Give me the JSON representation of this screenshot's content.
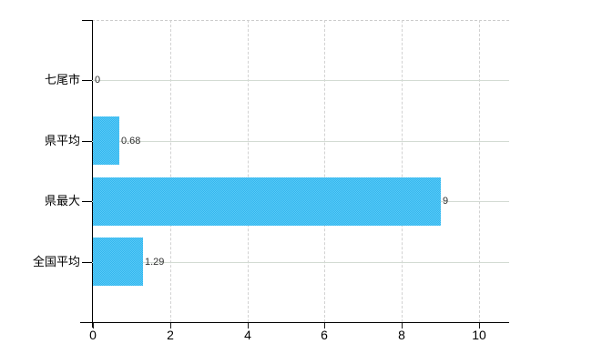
{
  "chart_data": {
    "type": "bar",
    "orientation": "horizontal",
    "title": "",
    "xlabel": "",
    "ylabel": "",
    "categories": [
      "七尾市",
      "県平均",
      "県最大",
      "全国平均"
    ],
    "values": [
      0,
      0.68,
      9,
      1.29
    ],
    "value_labels": [
      "0",
      "0.68",
      "9",
      "1.29"
    ],
    "x_ticks": [
      0,
      2,
      4,
      6,
      8,
      10
    ],
    "x_tick_labels": [
      "0",
      "2",
      "4",
      "6",
      "8",
      "10"
    ],
    "xlim": [
      0,
      10.78
    ],
    "legend": "none",
    "grid": {
      "vertical": "dashed",
      "horizontal": "solid",
      "top_border": "dashed"
    },
    "colors": {
      "bar_checker_light": "#59cbf7",
      "bar_checker_dark": "#33b5ee",
      "bar_average": "#47c2f1",
      "axis": "#000000",
      "grid_solid": "#d3dbd3",
      "grid_dashed": "#d2d2d2",
      "category_text": "#000000",
      "value_text": "#303030"
    }
  }
}
